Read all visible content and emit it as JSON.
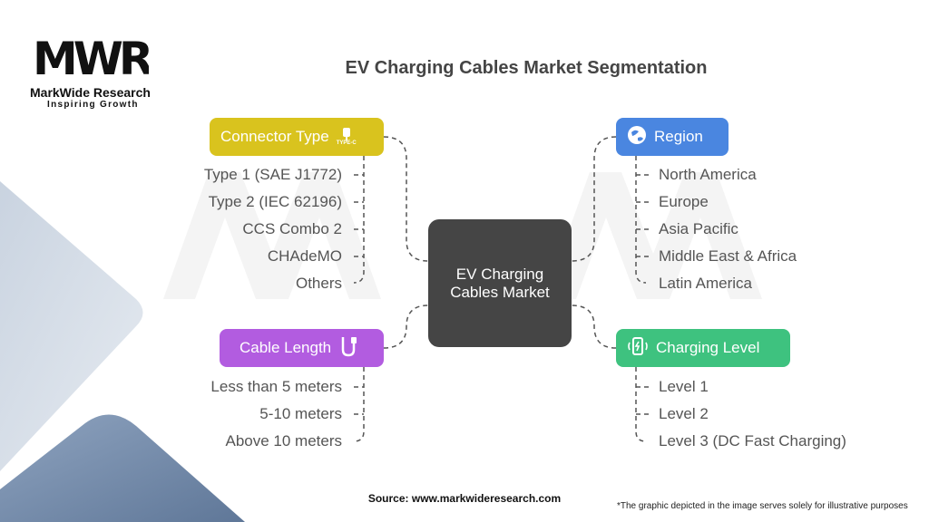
{
  "logo": {
    "mark": "MWR",
    "name": "MarkWide Research",
    "tagline": "Inspiring Growth"
  },
  "title": "EV Charging Cables Market Segmentation",
  "center": {
    "label": "EV Charging Cables Market"
  },
  "colors": {
    "connector": "#d9c31e",
    "region": "#4a86e0",
    "cable": "#b25ce0",
    "charging": "#3ec27f",
    "center": "#454545"
  },
  "segments": {
    "connector": {
      "label": "Connector Type",
      "icon": "type-c-plug-icon",
      "icon_text": "TYPE-C",
      "items": [
        "Type 1 (SAE J1772)",
        "Type 2 (IEC 62196)",
        "CCS Combo 2",
        "CHAdeMO",
        "Others"
      ]
    },
    "region": {
      "label": "Region",
      "icon": "globe-icon",
      "items": [
        "North America",
        "Europe",
        "Asia Pacific",
        "Middle East & Africa",
        "Latin America"
      ]
    },
    "cable": {
      "label": "Cable Length",
      "icon": "cable-icon",
      "items": [
        "Less than 5 meters",
        "5-10 meters",
        "Above 10 meters"
      ]
    },
    "charging": {
      "label": "Charging Level",
      "icon": "charging-phone-icon",
      "items": [
        "Level 1",
        "Level 2",
        "Level 3 (DC Fast Charging)"
      ]
    }
  },
  "footer": {
    "source": "Source: www.markwideresearch.com",
    "disclaimer": "*The graphic depicted in the image serves solely for illustrative purposes"
  }
}
